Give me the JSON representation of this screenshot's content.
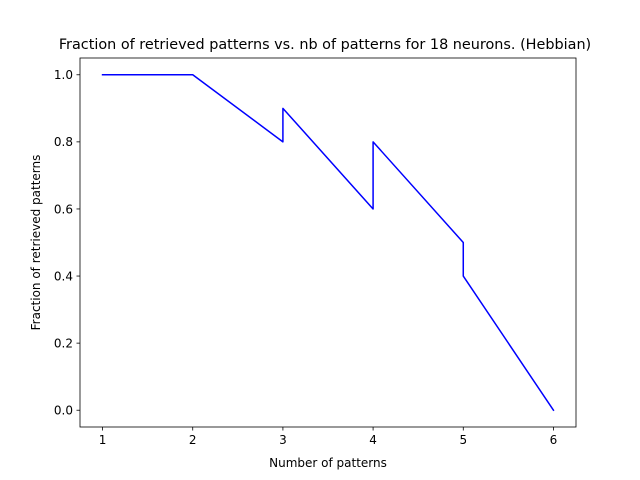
{
  "chart_data": {
    "type": "line",
    "title": "Fraction of retrieved patterns vs. nb of patterns for 18 neurons. (Hebbian)",
    "xlabel": "Number of patterns",
    "ylabel": "Fraction of retrieved patterns",
    "xlim": [
      0.75,
      6.25
    ],
    "ylim": [
      -0.05,
      1.05
    ],
    "xticks": [
      1,
      2,
      3,
      4,
      5,
      6
    ],
    "xtick_labels": [
      "1",
      "2",
      "3",
      "4",
      "5",
      "6"
    ],
    "yticks": [
      0.0,
      0.2,
      0.4,
      0.6,
      0.8,
      1.0
    ],
    "ytick_labels": [
      "0.0",
      "0.2",
      "0.4",
      "0.6",
      "0.8",
      "1.0"
    ],
    "grid": false,
    "series": [
      {
        "color": "#0000ff",
        "x": [
          1,
          2,
          3,
          3,
          4,
          4,
          5,
          5,
          6
        ],
        "y": [
          1.0,
          1.0,
          0.8,
          0.9,
          0.6,
          0.8,
          0.5,
          0.4,
          0.0
        ]
      }
    ]
  }
}
